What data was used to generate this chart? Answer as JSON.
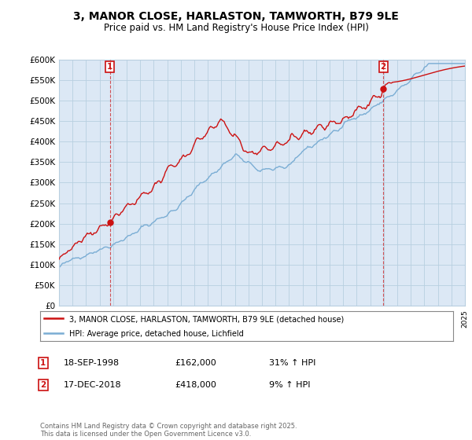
{
  "title": "3, MANOR CLOSE, HARLASTON, TAMWORTH, B79 9LE",
  "subtitle": "Price paid vs. HM Land Registry's House Price Index (HPI)",
  "ylim": [
    0,
    600000
  ],
  "yticks": [
    0,
    50000,
    100000,
    150000,
    200000,
    250000,
    300000,
    350000,
    400000,
    450000,
    500000,
    550000,
    600000
  ],
  "ytick_labels": [
    "£0",
    "£50K",
    "£100K",
    "£150K",
    "£200K",
    "£250K",
    "£300K",
    "£350K",
    "£400K",
    "£450K",
    "£500K",
    "£550K",
    "£600K"
  ],
  "hpi_color": "#7aadd4",
  "price_color": "#cc1111",
  "sale1_label": "1",
  "sale2_label": "2",
  "sale1_date": "18-SEP-1998",
  "sale1_price": "£162,000",
  "sale1_hpi": "31% ↑ HPI",
  "sale2_date": "17-DEC-2018",
  "sale2_price": "£418,000",
  "sale2_hpi": "9% ↑ HPI",
  "legend_line1": "3, MANOR CLOSE, HARLASTON, TAMWORTH, B79 9LE (detached house)",
  "legend_line2": "HPI: Average price, detached house, Lichfield",
  "footer": "Contains HM Land Registry data © Crown copyright and database right 2025.\nThis data is licensed under the Open Government Licence v3.0.",
  "bg_color": "#ffffff",
  "plot_bg_color": "#dce8f5",
  "grid_color": "#b8cfe0"
}
